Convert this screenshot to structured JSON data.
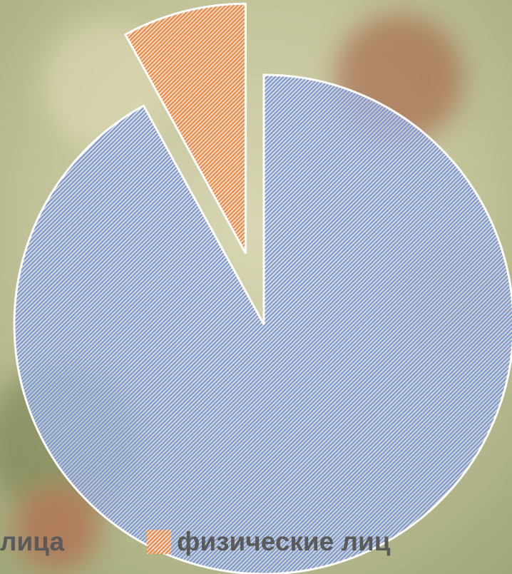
{
  "chart_data": {
    "type": "pie",
    "categories": [
      "лица",
      "физические лиц"
    ],
    "values": [
      92,
      8
    ],
    "colors": [
      "#7f9ad6",
      "#f08a4b"
    ],
    "exploded": [
      false,
      true
    ],
    "start_angle": 0,
    "direction": "clockwise",
    "legend": "bottom"
  }
}
